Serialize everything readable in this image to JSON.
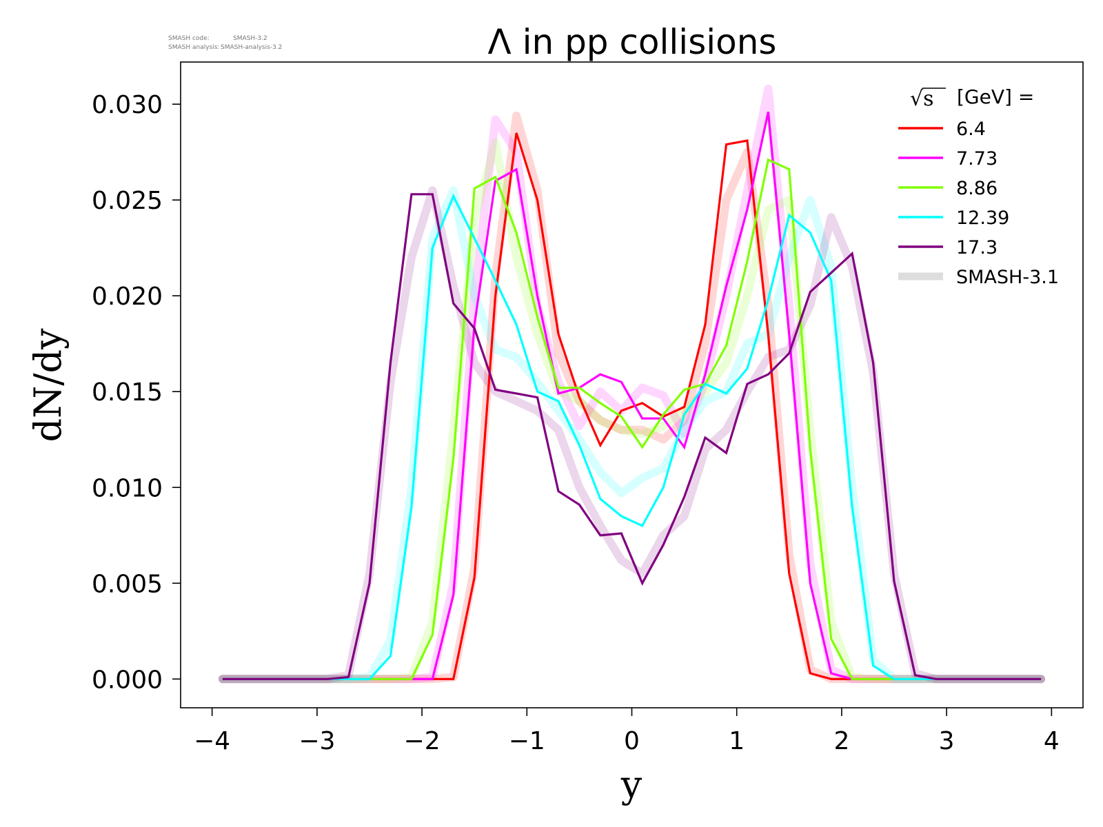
{
  "meta": {
    "line1_label": "SMASH code:",
    "line1_value": "SMASH-3.2",
    "line2_label": "SMASH analysis:",
    "line2_value": "SMASH-analysis-3.2"
  },
  "chart_data": {
    "type": "line",
    "title": "Λ in pp collisions",
    "xlabel": "y",
    "ylabel": "dN/dy",
    "xlim": [
      -4.3,
      4.3
    ],
    "ylim": [
      -0.0015,
      0.0322
    ],
    "x_ticks": [
      -4,
      -3,
      -2,
      -1,
      0,
      1,
      2,
      3,
      4
    ],
    "x_tick_labels": [
      "−4",
      "−3",
      "−2",
      "−1",
      "0",
      "1",
      "2",
      "3",
      "4"
    ],
    "y_ticks": [
      0.0,
      0.005,
      0.01,
      0.015,
      0.02,
      0.025,
      0.03
    ],
    "y_tick_labels": [
      "0.000",
      "0.005",
      "0.010",
      "0.015",
      "0.020",
      "0.025",
      "0.030"
    ],
    "grid": false,
    "legend": {
      "placement": "top-right",
      "title_sqrt": "√s",
      "title_rest": "[GeV] ="
    },
    "x": [
      -3.9,
      -3.7,
      -3.5,
      -3.3,
      -3.1,
      -2.9,
      -2.7,
      -2.5,
      -2.3,
      -2.1,
      -1.9,
      -1.7,
      -1.5,
      -1.3,
      -1.1,
      -0.9,
      -0.7,
      -0.5,
      -0.3,
      -0.1,
      0.1,
      0.3,
      0.5,
      0.7,
      0.9,
      1.1,
      1.3,
      1.5,
      1.7,
      1.9,
      2.1,
      2.3,
      2.5,
      2.7,
      2.9,
      3.1,
      3.3,
      3.5,
      3.7,
      3.9
    ],
    "series": [
      {
        "name": "6.4",
        "color": "#ff0000",
        "values": [
          0,
          0,
          0,
          0,
          0,
          0,
          0,
          0,
          0,
          0,
          0,
          0,
          0.0053,
          0.02,
          0.0285,
          0.025,
          0.018,
          0.0147,
          0.0122,
          0.014,
          0.0144,
          0.0137,
          0.0142,
          0.0185,
          0.0279,
          0.0281,
          0.018,
          0.0055,
          0.0003,
          0,
          0,
          0,
          0,
          0,
          0,
          0,
          0,
          0,
          0,
          0
        ],
        "reference": [
          0,
          0,
          0,
          0,
          0,
          0,
          0,
          0,
          0,
          0,
          0,
          0.0001,
          0.0058,
          0.021,
          0.0294,
          0.0255,
          0.017,
          0.0145,
          0.0135,
          0.013,
          0.013,
          0.0125,
          0.0135,
          0.0175,
          0.025,
          0.0275,
          0.0195,
          0.0065,
          0.0005,
          0,
          0,
          0,
          0,
          0,
          0,
          0,
          0,
          0,
          0,
          0
        ]
      },
      {
        "name": "7.73",
        "color": "#ff00ff",
        "values": [
          0,
          0,
          0,
          0,
          0,
          0,
          0,
          0,
          0,
          0,
          0,
          0.0044,
          0.0185,
          0.026,
          0.0266,
          0.02,
          0.0149,
          0.0152,
          0.0159,
          0.0155,
          0.0136,
          0.0136,
          0.0121,
          0.0159,
          0.0205,
          0.0245,
          0.0296,
          0.018,
          0.005,
          0.0003,
          0,
          0,
          0,
          0,
          0,
          0,
          0,
          0,
          0,
          0
        ],
        "reference": [
          0,
          0,
          0,
          0,
          0,
          0,
          0,
          0,
          0,
          0,
          0.0001,
          0.005,
          0.02,
          0.0292,
          0.0275,
          0.0195,
          0.0155,
          0.0132,
          0.015,
          0.014,
          0.0152,
          0.0148,
          0.0128,
          0.0155,
          0.02,
          0.0255,
          0.0308,
          0.0195,
          0.006,
          0.0005,
          0,
          0,
          0,
          0,
          0,
          0,
          0,
          0,
          0,
          0
        ]
      },
      {
        "name": "8.86",
        "color": "#80ff00",
        "values": [
          0,
          0,
          0,
          0,
          0,
          0,
          0,
          0,
          0,
          0,
          0.0023,
          0.0115,
          0.0256,
          0.0262,
          0.0233,
          0.0189,
          0.0152,
          0.0152,
          0.0144,
          0.0137,
          0.0121,
          0.0138,
          0.0151,
          0.0154,
          0.0174,
          0.0218,
          0.0271,
          0.0266,
          0.012,
          0.0021,
          0,
          0,
          0,
          0,
          0,
          0,
          0,
          0,
          0,
          0
        ],
        "reference": [
          0,
          0,
          0,
          0,
          0,
          0,
          0,
          0,
          0,
          0.0001,
          0.003,
          0.013,
          0.024,
          0.028,
          0.022,
          0.018,
          0.015,
          0.0145,
          0.0135,
          0.013,
          0.0128,
          0.0132,
          0.014,
          0.015,
          0.0165,
          0.02,
          0.0245,
          0.025,
          0.013,
          0.003,
          0.0001,
          0,
          0,
          0,
          0,
          0,
          0,
          0,
          0,
          0
        ]
      },
      {
        "name": "12.39",
        "color": "#00ffff",
        "values": [
          0,
          0,
          0,
          0,
          0,
          0,
          0,
          0,
          0.0012,
          0.009,
          0.0225,
          0.0252,
          0.023,
          0.0208,
          0.0185,
          0.015,
          0.0145,
          0.0122,
          0.0094,
          0.0085,
          0.008,
          0.01,
          0.0138,
          0.0154,
          0.0149,
          0.0162,
          0.0198,
          0.0242,
          0.0233,
          0.0208,
          0.009,
          0.0007,
          0,
          0,
          0,
          0,
          0,
          0,
          0,
          0
        ],
        "reference": [
          0,
          0,
          0,
          0,
          0,
          0,
          0,
          0.0001,
          0.002,
          0.01,
          0.023,
          0.0255,
          0.02,
          0.0172,
          0.0168,
          0.0155,
          0.014,
          0.0125,
          0.0108,
          0.0097,
          0.0105,
          0.011,
          0.013,
          0.0145,
          0.015,
          0.0175,
          0.018,
          0.022,
          0.025,
          0.0215,
          0.01,
          0.001,
          0,
          0,
          0,
          0,
          0,
          0,
          0,
          0
        ]
      },
      {
        "name": "17.3",
        "color": "#800080",
        "values": [
          0,
          0,
          0,
          0,
          0,
          0,
          0.0001,
          0.005,
          0.0165,
          0.0253,
          0.0253,
          0.0196,
          0.0183,
          0.0151,
          0.0149,
          0.0147,
          0.0098,
          0.0091,
          0.0075,
          0.0076,
          0.005,
          0.007,
          0.0095,
          0.0126,
          0.0118,
          0.0154,
          0.0159,
          0.017,
          0.0202,
          0.0212,
          0.0222,
          0.0165,
          0.0051,
          0.0002,
          0,
          0,
          0,
          0,
          0,
          0
        ],
        "reference": [
          0,
          0,
          0,
          0,
          0,
          0,
          0.0002,
          0.0055,
          0.0155,
          0.022,
          0.0255,
          0.0205,
          0.0165,
          0.015,
          0.0145,
          0.014,
          0.013,
          0.01,
          0.008,
          0.0062,
          0.0055,
          0.0075,
          0.0085,
          0.012,
          0.013,
          0.015,
          0.0168,
          0.0172,
          0.0195,
          0.0241,
          0.0215,
          0.016,
          0.0055,
          0.0003,
          0,
          0,
          0,
          0,
          0,
          0
        ]
      }
    ],
    "reference_legend": {
      "name": "SMASH-3.1",
      "color": "#dddddd"
    }
  }
}
